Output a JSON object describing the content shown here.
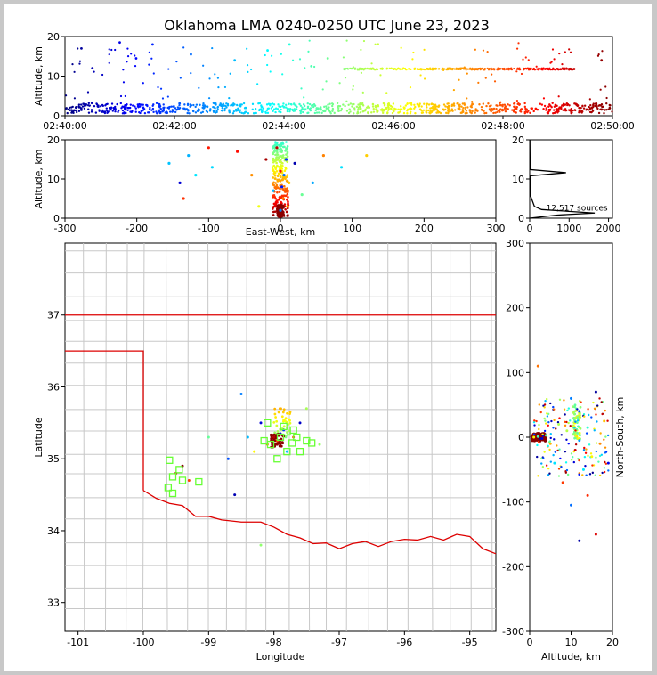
{
  "title": "Oklahoma LMA 0240-0250 UTC June 23, 2023",
  "chart_data": [
    {
      "type": "scatter",
      "panel": "altitude-vs-time",
      "ylabel": "Altitude, km",
      "x_ticks": [
        "02:40:00",
        "02:42:00",
        "02:44:00",
        "02:46:00",
        "02:48:00",
        "02:50:00"
      ],
      "xlim": [
        "02:40:00",
        "02:50:00"
      ],
      "ylim": [
        0,
        20
      ],
      "y_ticks": [
        0,
        10,
        20
      ],
      "colormap": "jet (blue to dark red by time)",
      "series": [
        {
          "values": [
            [
              0.2,
              2.1
            ],
            [
              0.3,
              1.5
            ],
            [
              0.6,
              2.4
            ],
            [
              0.9,
              1.8
            ],
            [
              1.1,
              2.6
            ],
            [
              1.4,
              1.2
            ],
            [
              1.8,
              2.0
            ],
            [
              2.2,
              1.6
            ],
            [
              2.6,
              2.3
            ],
            [
              3.0,
              1.4
            ],
            [
              3.3,
              2.0
            ],
            [
              3.6,
              1.1
            ],
            [
              4.0,
              2.2
            ],
            [
              4.3,
              1.3
            ],
            [
              4.6,
              1.9
            ],
            [
              5.0,
              1.2
            ],
            [
              5.4,
              1.8
            ],
            [
              5.8,
              1.5
            ],
            [
              6.2,
              2.0
            ],
            [
              6.6,
              1.4
            ],
            [
              7.0,
              1.9
            ],
            [
              7.4,
              1.3
            ],
            [
              7.8,
              1.7
            ],
            [
              8.2,
              1.2
            ],
            [
              8.6,
              1.8
            ],
            [
              9.0,
              1.5
            ],
            [
              9.4,
              1.3
            ],
            [
              9.8,
              1.6
            ]
          ]
        },
        {
          "values": [
            [
              0.3,
              17.0
            ],
            [
              0.5,
              12.0
            ],
            [
              1.0,
              18.5
            ],
            [
              1.3,
              14.5
            ],
            [
              1.6,
              18.0
            ],
            [
              2.3,
              15.5
            ],
            [
              3.1,
              14.0
            ],
            [
              3.7,
              16.5
            ],
            [
              4.1,
              18.0
            ],
            [
              4.5,
              12.5
            ],
            [
              4.8,
              14.5
            ],
            [
              5.1,
              11.8
            ],
            [
              5.6,
              11.8
            ],
            [
              6.0,
              11.8
            ],
            [
              6.5,
              11.8
            ],
            [
              7.0,
              11.8
            ],
            [
              7.5,
              11.8
            ],
            [
              8.0,
              11.8
            ],
            [
              8.5,
              11.8
            ],
            [
              9.0,
              11.8
            ],
            [
              9.3,
              11.8
            ],
            [
              9.8,
              14.0
            ]
          ]
        }
      ]
    },
    {
      "type": "scatter",
      "panel": "altitude-vs-east-west",
      "xlabel": "East-West, km",
      "ylabel": "Altitude, km",
      "xlim": [
        -300,
        300
      ],
      "ylim": [
        0,
        20
      ],
      "x_ticks": [
        -300,
        -200,
        -100,
        0,
        100,
        200,
        300
      ],
      "y_ticks": [
        0,
        10,
        20
      ],
      "values": [
        [
          -155,
          14
        ],
        [
          -140,
          9
        ],
        [
          -135,
          5
        ],
        [
          -128,
          16
        ],
        [
          -118,
          11
        ],
        [
          -100,
          18
        ],
        [
          -95,
          13
        ],
        [
          -60,
          17
        ],
        [
          -40,
          11
        ],
        [
          -30,
          3
        ],
        [
          -20,
          15
        ],
        [
          -10,
          7
        ],
        [
          -5,
          18
        ],
        [
          0,
          12
        ],
        [
          0,
          2
        ],
        [
          2,
          8
        ],
        [
          4,
          5
        ],
        [
          5,
          11
        ],
        [
          8,
          15
        ],
        [
          10,
          3
        ],
        [
          12,
          9
        ],
        [
          20,
          14
        ],
        [
          30,
          6
        ],
        [
          45,
          9
        ],
        [
          60,
          16
        ],
        [
          85,
          13
        ],
        [
          120,
          16
        ]
      ]
    },
    {
      "type": "histogram",
      "panel": "altitude-histogram",
      "xlim": [
        0,
        2100
      ],
      "ylim": [
        0,
        20
      ],
      "x_ticks": [
        0,
        1000,
        2000
      ],
      "y_ticks": [
        0,
        10,
        20
      ],
      "annotation": "12,517 sources"
    },
    {
      "type": "scatter",
      "panel": "plan-view-map",
      "xlabel": "Longitude",
      "ylabel": "Latitude",
      "xlim": [
        -101.2,
        -94.6
      ],
      "ylim": [
        32.6,
        38.0
      ],
      "x_ticks": [
        -101,
        -100,
        -99,
        -98,
        -97,
        -96,
        -95
      ],
      "y_ticks": [
        33,
        34,
        35,
        36,
        37
      ],
      "stations": [
        [
          -98.1,
          35.5
        ],
        [
          -97.9,
          35.3
        ],
        [
          -97.7,
          35.4
        ],
        [
          -97.6,
          35.1
        ],
        [
          -97.5,
          35.25
        ],
        [
          -97.8,
          35.1
        ],
        [
          -98.05,
          35.2
        ],
        [
          -97.95,
          35.0
        ],
        [
          -98.15,
          35.25
        ],
        [
          -97.42,
          35.22
        ],
        [
          -99.6,
          34.98
        ],
        [
          -99.45,
          34.85
        ],
        [
          -99.55,
          34.75
        ],
        [
          -99.4,
          34.7
        ],
        [
          -99.62,
          34.6
        ],
        [
          -99.55,
          34.52
        ],
        [
          -99.15,
          34.68
        ],
        [
          -97.72,
          35.22
        ],
        [
          -97.65,
          35.3
        ],
        [
          -97.85,
          35.45
        ]
      ],
      "values": [
        [
          -98.0,
          35.3
        ],
        [
          -97.95,
          35.25
        ],
        [
          -97.9,
          35.35
        ],
        [
          -98.1,
          35.2
        ],
        [
          -97.85,
          35.4
        ],
        [
          -98.2,
          35.5
        ],
        [
          -97.8,
          35.1
        ],
        [
          -98.3,
          35.1
        ],
        [
          -97.7,
          35.3
        ],
        [
          -97.6,
          35.5
        ],
        [
          -98.4,
          35.3
        ],
        [
          -99.5,
          34.8
        ],
        [
          -99.3,
          34.7
        ],
        [
          -99.4,
          34.9
        ],
        [
          -98.7,
          35.0
        ],
        [
          -98.5,
          35.9
        ],
        [
          -97.5,
          35.7
        ],
        [
          -97.3,
          35.2
        ],
        [
          -98.6,
          34.5
        ],
        [
          -98.2,
          33.8
        ],
        [
          -99.0,
          35.3
        ]
      ]
    },
    {
      "type": "scatter",
      "panel": "north-south-vs-altitude",
      "xlabel": "Altitude, km",
      "ylabel": "North-South, km",
      "xlim": [
        0,
        20
      ],
      "ylim": [
        -300,
        300
      ],
      "x_ticks": [
        0,
        10,
        20
      ],
      "y_ticks": [
        -300,
        -200,
        -100,
        0,
        100,
        200,
        300
      ],
      "values": [
        [
          1,
          0
        ],
        [
          2,
          1
        ],
        [
          3,
          -2
        ],
        [
          4,
          3
        ],
        [
          5,
          -10
        ],
        [
          6,
          -40
        ],
        [
          7,
          20
        ],
        [
          8,
          -70
        ],
        [
          9,
          10
        ],
        [
          10,
          60
        ],
        [
          11,
          30
        ],
        [
          11,
          -20
        ],
        [
          12,
          40
        ],
        [
          12,
          -5
        ],
        [
          13,
          -50
        ],
        [
          14,
          15
        ],
        [
          14,
          -90
        ],
        [
          15,
          -30
        ],
        [
          16,
          70
        ],
        [
          16,
          -150
        ],
        [
          17,
          -10
        ],
        [
          18,
          25
        ],
        [
          19,
          -40
        ],
        [
          2,
          110
        ],
        [
          12,
          -160
        ],
        [
          10,
          -105
        ]
      ]
    }
  ]
}
